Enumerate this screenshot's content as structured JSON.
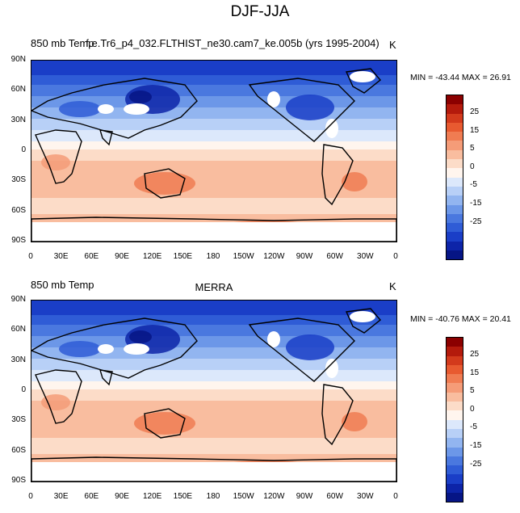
{
  "title": "DJF-JJA",
  "panels": [
    {
      "left_title": "850 mb Temp",
      "center_title": "f.e.Tr6_p4_032.FLTHIST_ne30.cam7_ke.005b (yrs 1995-2004)",
      "units": "K",
      "minmax": "MIN = -43.44 MAX =  26.91"
    },
    {
      "left_title": "850 mb Temp",
      "center_title": "MERRA",
      "units": "K",
      "minmax": "MIN = -40.76 MAX =  20.41"
    }
  ],
  "lat_labels": [
    "90N",
    "60N",
    "30N",
    "0",
    "30S",
    "60S",
    "90S"
  ],
  "lon_labels": [
    "0",
    "30E",
    "60E",
    "90E",
    "120E",
    "150E",
    "180",
    "150W",
    "120W",
    "90W",
    "60W",
    "30W",
    "0"
  ],
  "colorbar": {
    "labels": [
      "25",
      "15",
      "5",
      "0",
      "-5",
      "-15",
      "-25"
    ],
    "colors": [
      "#8b0000",
      "#b41a0c",
      "#d33a1c",
      "#e85a30",
      "#f07c52",
      "#f59c78",
      "#f9bd9f",
      "#fcdcc8",
      "#fff5ee",
      "#dce8fb",
      "#b8d0f7",
      "#92b5f0",
      "#6c97e8",
      "#4a78df",
      "#2f5cd6",
      "#1a3ec7",
      "#0d24a8",
      "#061585"
    ]
  }
}
